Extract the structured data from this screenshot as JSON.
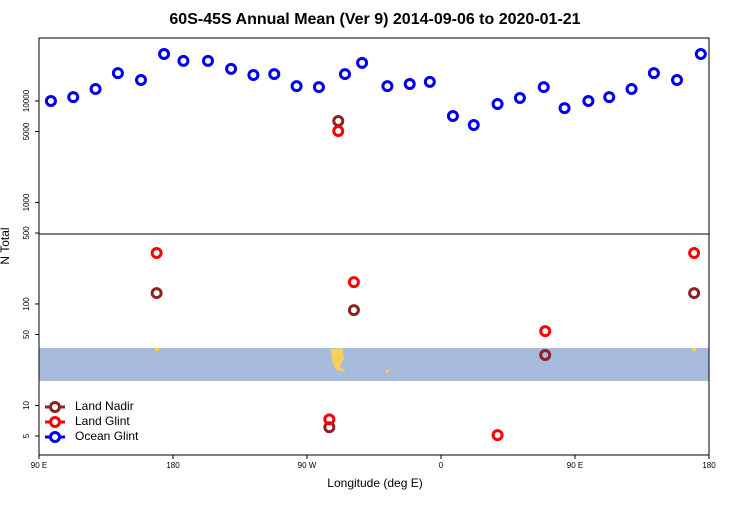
{
  "chart_data": {
    "type": "scatter",
    "title": "60S-45S Annual Mean (Ver 9)   2014-09-06 to 2020-01-21",
    "x_label": "Longitude (deg E)",
    "y_label": "N Total",
    "xlim": [
      90,
      540
    ],
    "xticks": [
      {
        "value": 90,
        "label": "90 E"
      },
      180,
      {
        "value": 270,
        "label": "90 W"
      },
      {
        "value": 360,
        "label": "0"
      },
      {
        "value": 450,
        "label": "90 E"
      },
      {
        "value": 540,
        "label": "180"
      }
    ],
    "ylim": [
      3.25,
      41700
    ],
    "ylog": true,
    "yticks": [
      5,
      10,
      50,
      100,
      500,
      1000,
      5000,
      10000
    ],
    "legend": "bottom-left",
    "series": [
      {
        "name": "Land Nadir",
        "color": "#8b2323",
        "x": [
          291,
          169,
          301.5,
          430,
          530,
          285
        ],
        "values": [
          6340,
          128,
          87,
          31.4,
          128,
          6.1
        ]
      },
      {
        "name": "Land Glint",
        "color": "#ff0000",
        "x": [
          291,
          169,
          301.5,
          430,
          530,
          285,
          398
        ],
        "values": [
          5060,
          318,
          164,
          54,
          318,
          7.3,
          5.1
        ]
      },
      {
        "name": "Ocean Glint",
        "color": "#0000ee",
        "x": [
          98,
          113,
          128,
          143,
          158.5,
          174,
          187,
          203.5,
          219,
          234,
          248,
          263,
          278,
          295.5,
          307,
          324,
          339,
          352.5,
          368,
          382,
          398,
          413,
          429,
          443,
          459,
          473,
          488,
          503,
          518.5,
          534.5
        ],
        "values": [
          10000,
          10900,
          13100,
          18800,
          16100,
          29000,
          24800,
          24800,
          20700,
          18000,
          18400,
          14000,
          13700,
          18400,
          23700,
          14000,
          14700,
          15400,
          7110,
          5800,
          9330,
          10700,
          13700,
          8500,
          10000,
          10900,
          13100,
          18800,
          16100,
          29000
        ]
      }
    ]
  }
}
